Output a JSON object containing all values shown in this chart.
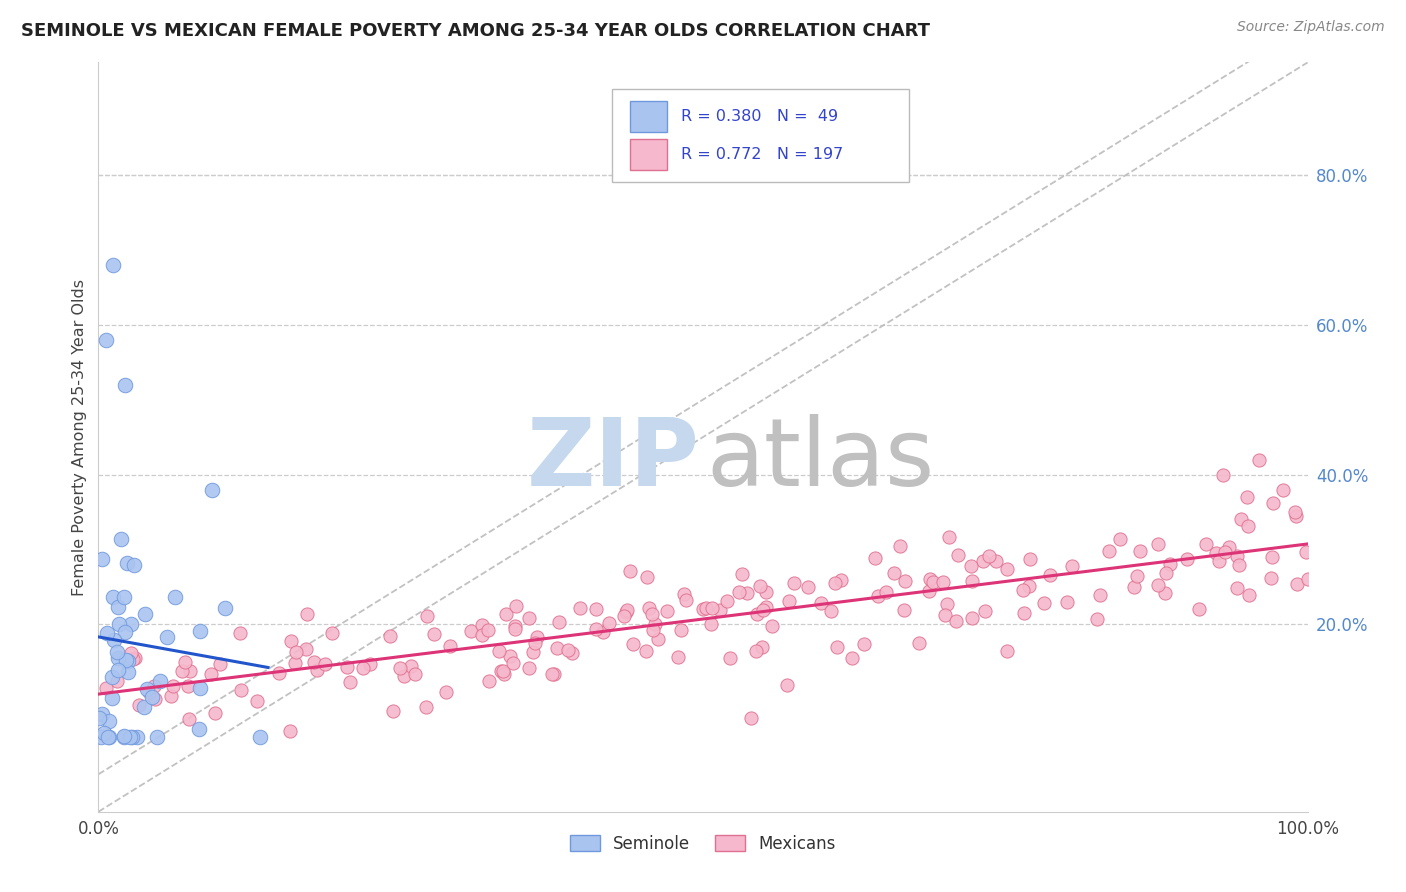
{
  "title": "SEMINOLE VS MEXICAN FEMALE POVERTY AMONG 25-34 YEAR OLDS CORRELATION CHART",
  "source": "Source: ZipAtlas.com",
  "ylabel": "Female Poverty Among 25-34 Year Olds",
  "seminole_R": 0.38,
  "seminole_N": 49,
  "mexican_R": 0.772,
  "mexican_N": 197,
  "legend_color": "#3344cc",
  "seminole_fill": "#aac4f0",
  "seminole_edge": "#7099dd",
  "mexican_fill": "#f5b8cc",
  "mexican_edge": "#e07090",
  "trend_blue": "#2255cc",
  "trend_pink": "#dd3377",
  "diagonal_color": "#bbbbbb",
  "watermark_zip_color": "#c5d8ed",
  "watermark_atlas_color": "#c0c0c0",
  "background": "#ffffff",
  "grid_color": "#cccccc",
  "right_tick_color": "#5588cc",
  "xlim": [
    0.0,
    1.0
  ],
  "ylim": [
    -0.05,
    0.95
  ],
  "right_yticks": [
    0.2,
    0.4,
    0.6,
    0.8
  ],
  "right_yticklabels": [
    "20.0%",
    "40.0%",
    "60.0%",
    "80.0%"
  ],
  "xtick_positions": [
    0.0,
    0.1,
    0.2,
    0.3,
    0.4,
    0.5,
    0.6,
    0.7,
    0.8,
    0.9,
    1.0
  ],
  "xtick_labels": [
    "0.0%",
    "",
    "",
    "",
    "",
    "",
    "",
    "",
    "",
    "",
    "100.0%"
  ]
}
